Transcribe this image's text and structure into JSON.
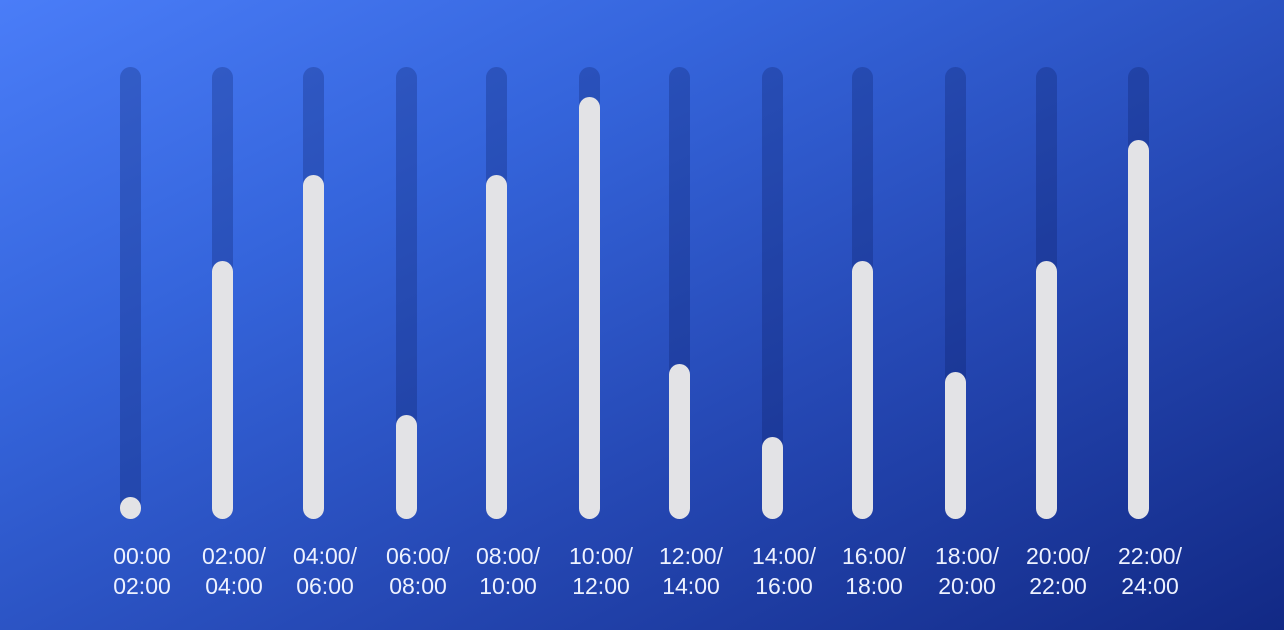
{
  "colors": {
    "background_start": "#4a7df8",
    "background_end": "#122985",
    "bar_fill": "#e3e3e6",
    "bar_track": "#1d3a9e",
    "label_text": "#eef2ff"
  },
  "chart_data": {
    "type": "bar",
    "categories": [
      "00:00\n02:00",
      "02:00/\n04:00",
      "04:00/\n06:00",
      "06:00/\n08:00",
      "08:00/\n10:00",
      "10:00/\n12:00",
      "12:00/\n14:00",
      "14:00/\n16:00",
      "16:00/\n18:00",
      "18:00/\n20:00",
      "20:00/\n22:00",
      "22:00/\n24:00"
    ],
    "values": [
      0.0,
      0.55,
      0.75,
      0.19,
      0.75,
      0.93,
      0.31,
      0.14,
      0.55,
      0.29,
      0.55,
      0.83
    ],
    "ylim": [
      0,
      1
    ],
    "grid": false,
    "legend": "none",
    "title": "",
    "xlabel": "",
    "ylabel": ""
  }
}
